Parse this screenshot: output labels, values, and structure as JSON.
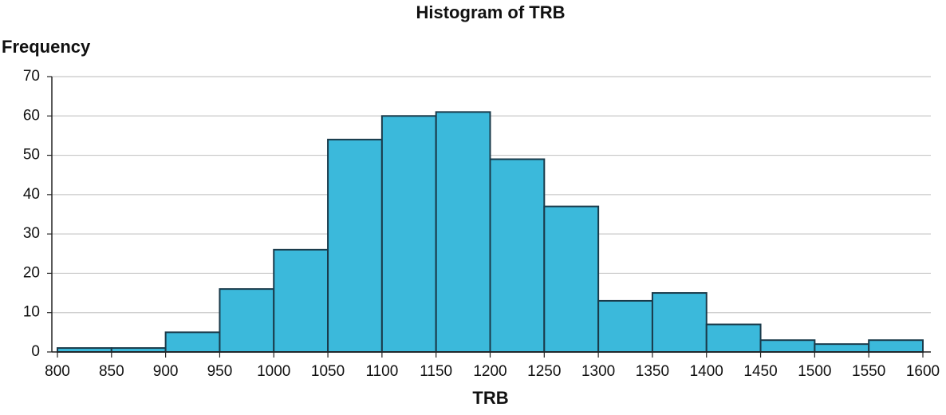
{
  "chart_data": {
    "type": "histogram",
    "title": "Histogram of TRB",
    "x_label": "TRB",
    "y_label": "Frequency",
    "bins": [
      800,
      850,
      900,
      950,
      1000,
      1050,
      1100,
      1150,
      1200,
      1250,
      1300,
      1350,
      1400,
      1450,
      1500,
      1550,
      1600
    ],
    "values": [
      1,
      1,
      5,
      16,
      26,
      54,
      60,
      61,
      49,
      37,
      13,
      15,
      7,
      3,
      2,
      3
    ],
    "color": "#3bb9db",
    "edge_color": "#1a3a4a",
    "xlim": [
      800,
      1600
    ],
    "xticks": [
      800,
      850,
      900,
      950,
      1000,
      1050,
      1100,
      1150,
      1200,
      1250,
      1300,
      1350,
      1400,
      1450,
      1500,
      1550,
      1600
    ],
    "ylim": [
      0,
      70
    ],
    "yticks": [
      0,
      10,
      20,
      30,
      40,
      50,
      60,
      70
    ],
    "grid": true
  }
}
